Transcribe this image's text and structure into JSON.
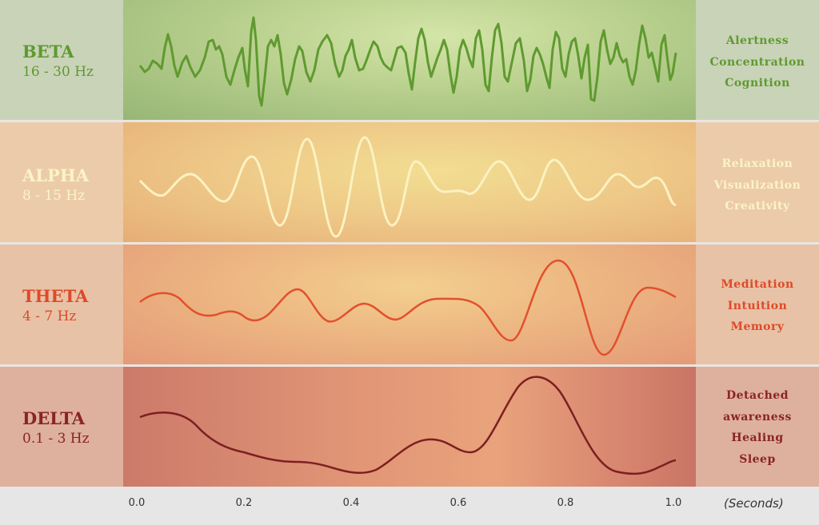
{
  "bands": [
    {
      "id": "beta",
      "name": "BETA",
      "range": "16 - 30 Hz",
      "effects": [
        "Alertness",
        "Concentration",
        "Cognition"
      ],
      "colors": {
        "label": "#5e9a2f",
        "wave": "#5f9a30",
        "panel": "#c9d3b8",
        "bg_center": "#d2e3a6",
        "bg_edge": "#9bba78"
      }
    },
    {
      "id": "alpha",
      "name": "ALPHA",
      "range": "8 - 15 Hz",
      "effects": [
        "Relaxation",
        "Visualization",
        "Creativity"
      ],
      "colors": {
        "label": "#fbf4c6",
        "wave": "#fbf2c2",
        "panel": "#eccbaa",
        "bg_center": "#f1dc90",
        "bg_edge": "#e6ae78"
      }
    },
    {
      "id": "theta",
      "name": "THETA",
      "range": "4 - 7 Hz",
      "effects": [
        "Meditation",
        "Intuition",
        "Memory"
      ],
      "colors": {
        "label": "#de4a2a",
        "wave": "#e2502c",
        "panel": "#e8c2a6",
        "bg_center": "#f1c98c",
        "bg_edge": "#e59b78"
      }
    },
    {
      "id": "delta",
      "name": "DELTA",
      "range": "0.1 - 3 Hz",
      "effects": [
        "Detached",
        "awareness",
        "Healing",
        "Sleep"
      ],
      "colors": {
        "label": "#8b2325",
        "wave": "#7d1f22",
        "panel": "#ddb19d",
        "bg_center": "#e9a47c",
        "bg_edge": "#cd7768"
      }
    }
  ],
  "axis": {
    "ticks": [
      "0.0",
      "0.2",
      "0.4",
      "0.6",
      "0.8",
      "1.0"
    ],
    "unit": "(Seconds)"
  },
  "separator_color": "#e9e6e2"
}
